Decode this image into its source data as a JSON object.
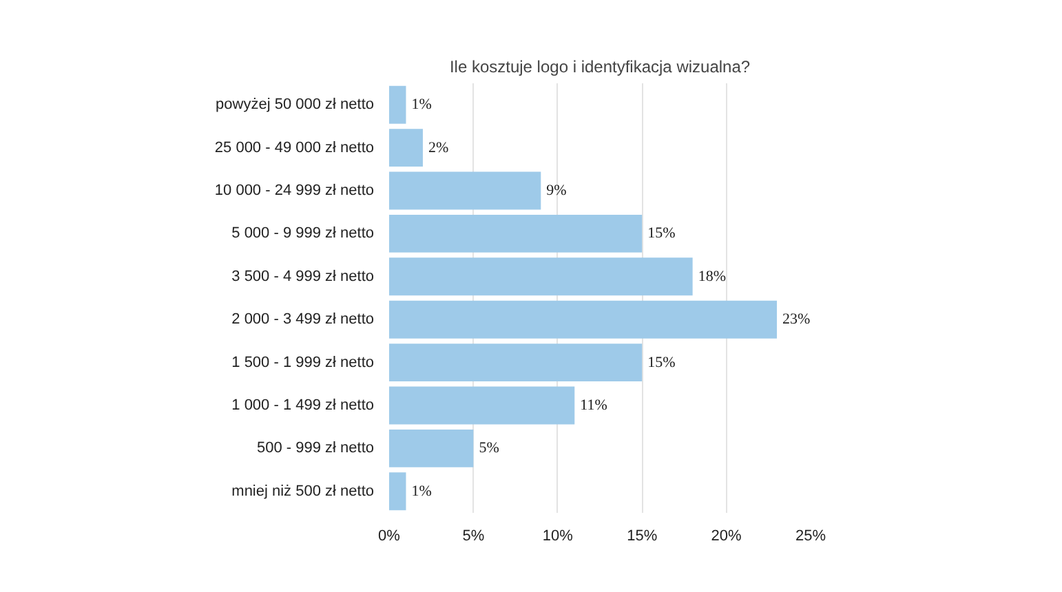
{
  "chart_data": {
    "type": "bar",
    "orientation": "horizontal",
    "title": "Ile kosztuje logo i identyfikacja wizualna?",
    "categories": [
      "powyżej 50 000 zł netto",
      "25 000 - 49 000 zł netto",
      "10 000 - 24 999 zł netto",
      "5 000 - 9 999 zł netto",
      "3 500 - 4 999 zł netto",
      "2 000 - 3 499 zł netto",
      "1 500 - 1 999 zł netto",
      "1 000 - 1 499 zł netto",
      "500 - 999 zł netto",
      "mniej niż 500 zł netto"
    ],
    "values": [
      1,
      2,
      9,
      15,
      18,
      23,
      15,
      11,
      5,
      1
    ],
    "value_labels": [
      "1%",
      "2%",
      "9%",
      "15%",
      "18%",
      "23%",
      "15%",
      "11%",
      "5%",
      "1%"
    ],
    "color": "#9ecae9",
    "xlim": [
      0,
      25
    ],
    "xticks": [
      {
        "value": 0,
        "label": "0%"
      },
      {
        "value": 5,
        "label": "5%"
      },
      {
        "value": 10,
        "label": "10%"
      },
      {
        "value": 15,
        "label": "15%"
      },
      {
        "value": 20,
        "label": "20%"
      },
      {
        "value": 25,
        "label": "25%"
      }
    ],
    "grid": "x"
  }
}
